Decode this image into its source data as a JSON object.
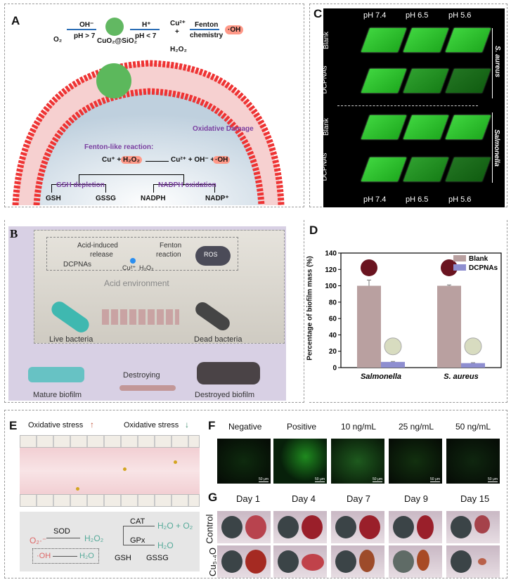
{
  "panels": {
    "a": "A",
    "b": "B",
    "c": "C",
    "d": "D",
    "e": "E",
    "f": "F",
    "g": "G"
  },
  "panel_a": {
    "top": {
      "oh": "OH⁻",
      "ph_gt": "pH > 7",
      "o2": "O₂",
      "particle": "CuO₂@SiO₂",
      "h": "H⁺",
      "ph_lt": "pH < 7",
      "cu": "Cu²⁺",
      "plus": "+",
      "h2o2": "H₂O₂",
      "fenton": "Fenton",
      "chemistry": "chemistry",
      "oh_rad": "·OH"
    },
    "reaction_title": "Fenton-like reaction:",
    "reaction_left": "Cu⁺ +",
    "reaction_h2o2": "H₂O₂",
    "reaction_right": "Cu²⁺ + OH⁻ +",
    "reaction_oh": "·OH",
    "oxidative_damage": "Oxidative Damage",
    "gsh_depletion": "GSH depletion",
    "nadph_oxidation": "NADPH oxidation",
    "gsh": "GSH",
    "gssg": "GSSG",
    "nadph": "NADPH",
    "nadp": "NADP⁺"
  },
  "panel_b": {
    "acid_release": "Acid-induced",
    "release": "release",
    "fenton": "Fenton",
    "reaction": "reaction",
    "dcpnas": "DCPNAs",
    "cu": "Cu²⁺",
    "h2o2": "H₂O₂",
    "ros": "ROS",
    "acid_env": "Acid environment",
    "live": "Live bacteria",
    "dead": "Dead bacteria",
    "destroying": "Destroying",
    "mature": "Mature biofilm",
    "destroyed": "Destroyed biofilm"
  },
  "panel_c": {
    "ph": [
      "pH 7.4",
      "pH 6.5",
      "pH 5.6"
    ],
    "rows": [
      "Blank",
      "DCPNAs",
      "Blank",
      "DCPNAs"
    ],
    "groups": [
      "S. aureus",
      "Salmonella"
    ],
    "tile_color": "#33cc33"
  },
  "chart_data": {
    "type": "bar",
    "categories": [
      "Salmonella",
      "S. aureus"
    ],
    "series": [
      {
        "name": "Blank",
        "values": [
          100,
          100
        ],
        "errors": [
          7,
          1
        ],
        "color": "#b9a0a0"
      },
      {
        "name": "DCPNAs",
        "values": [
          7,
          5.5
        ],
        "errors": [
          0.5,
          0.5
        ],
        "color": "#8e8ed0"
      }
    ],
    "ylabel": "Percentage of biofilm mass (%)",
    "xlabel": "",
    "ylim": [
      0,
      140
    ],
    "yticks": [
      0,
      20,
      40,
      60,
      80,
      100,
      120,
      140
    ],
    "legend": "top-right",
    "grid": false
  },
  "panel_e": {
    "stress_up": "Oxidative stress",
    "stress_down": "Oxidative stress",
    "o2": "O₂·⁻",
    "sod": "SOD",
    "h2o2": "H₂O₂",
    "cat": "CAT",
    "gpx": "GPx",
    "h2o_o2": "H₂O + O₂",
    "h2o": "H₂O",
    "gsh": "GSH",
    "gssg": "GSSG",
    "oh": "·OH",
    "h2o_b": "H₂O"
  },
  "panel_f": {
    "labels": [
      "Negative",
      "Positive",
      "10 ng/mL",
      "25 ng/mL",
      "50 ng/mL"
    ],
    "scale": "50 μm"
  },
  "panel_g": {
    "days": [
      "Day 1",
      "Day 4",
      "Day 7",
      "Day 9",
      "Day 15"
    ],
    "rows": [
      "Control",
      "Cu₅.₄O"
    ]
  }
}
